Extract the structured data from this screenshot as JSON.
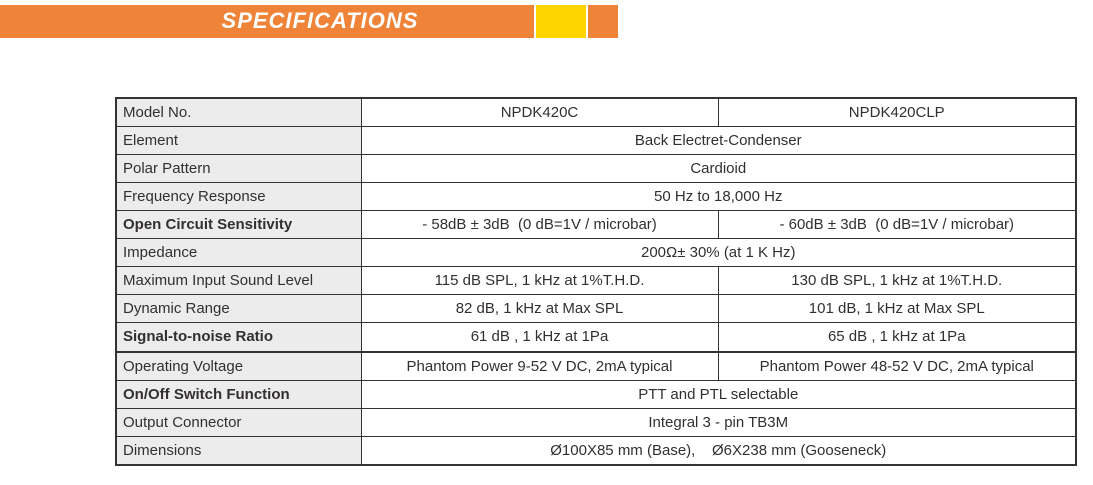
{
  "header": {
    "title": "SPECIFICATIONS",
    "banner_orange": "#ef8438",
    "banner_yellow": "#ffd400"
  },
  "spec_table": {
    "rows": [
      {
        "label": "Model No.",
        "values": [
          "NPDK420C",
          "NPDK420CLP"
        ]
      },
      {
        "label": "Element",
        "values": [
          "Back Electret-Condenser"
        ]
      },
      {
        "label": "Polar Pattern",
        "values": [
          "Cardioid"
        ]
      },
      {
        "label": "Frequency Response",
        "values": [
          "50 Hz to 18,000 Hz"
        ]
      },
      {
        "label": "Open Circuit Sensitivity",
        "values": [
          "- 58dB ± 3dB  (0 dB=1V / microbar)",
          "- 60dB ± 3dB  (0 dB=1V / microbar)"
        ]
      },
      {
        "label": "Impedance",
        "values": [
          "200Ω± 30% (at 1 K Hz)"
        ]
      },
      {
        "label": "Maximum Input Sound Level",
        "values": [
          "115 dB SPL, 1 kHz at 1%T.H.D.",
          "130 dB SPL, 1 kHz at 1%T.H.D."
        ]
      },
      {
        "label": "Dynamic Range",
        "values": [
          "82 dB, 1 kHz at Max SPL",
          "101 dB, 1 kHz at Max SPL"
        ]
      },
      {
        "label": "Signal-to-noise Ratio",
        "values": [
          "61 dB , 1 kHz at 1Pa",
          "65 dB , 1 kHz at 1Pa"
        ]
      },
      {
        "label": "Operating Voltage",
        "values": [
          "Phantom Power 9-52 V DC, 2mA typical",
          "Phantom Power 48-52 V DC, 2mA typical"
        ]
      },
      {
        "label": "On/Off Switch Function",
        "values": [
          "PTT and PTL selectable"
        ]
      },
      {
        "label": "Output Connector",
        "values": [
          "Integral 3 - pin TB3M"
        ]
      },
      {
        "label": "Dimensions",
        "values": [
          "Ø100X85 mm (Base),    Ø6X238 mm (Gooseneck)"
        ]
      }
    ]
  }
}
